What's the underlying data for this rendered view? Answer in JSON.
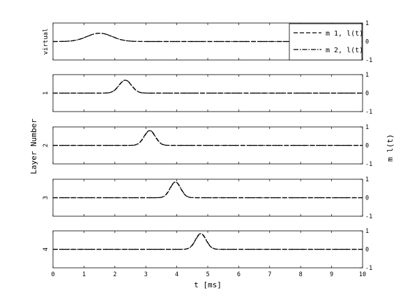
{
  "chart_data": {
    "type": "line",
    "title": "",
    "xlabel": "t [ms]",
    "ylabel_left": "Layer Number",
    "ylabel_right": "m l(t)",
    "xlim": [
      0,
      10
    ],
    "ylim": [
      -1,
      1
    ],
    "x_ticks": [
      "0",
      "1",
      "2",
      "3",
      "4",
      "5",
      "6",
      "7",
      "8",
      "9",
      "10"
    ],
    "y_ticks": [
      "-1",
      "0",
      "1"
    ],
    "legend": {
      "placement": "top-right",
      "entries": [
        {
          "label": "m 1, l(t)",
          "style": "dashed"
        },
        {
          "label": "m 2, l(t)",
          "style": "dash-dot"
        }
      ]
    },
    "panels": [
      {
        "label": "virtual",
        "pulse_center_ms": 1.5,
        "peak": 0.45,
        "sigma_ms": 0.4
      },
      {
        "label": "1",
        "pulse_center_ms": 2.33,
        "peak": 0.7,
        "sigma_ms": 0.2
      },
      {
        "label": "2",
        "pulse_center_ms": 3.12,
        "peak": 0.8,
        "sigma_ms": 0.18
      },
      {
        "label": "3",
        "pulse_center_ms": 3.95,
        "peak": 0.85,
        "sigma_ms": 0.17
      },
      {
        "label": "4",
        "pulse_center_ms": 4.77,
        "peak": 0.85,
        "sigma_ms": 0.17
      }
    ],
    "grid": false
  }
}
